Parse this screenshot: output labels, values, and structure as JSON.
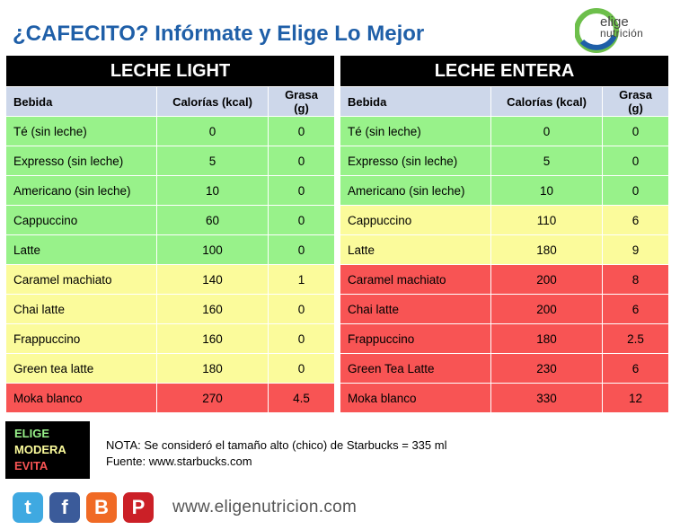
{
  "title": "¿CAFECITO? Infórmate y Elige Lo Mejor",
  "logo": {
    "line1": "elige",
    "line2": "nutrición",
    "colors": [
      "#6dbf4b",
      "#1f5fa8"
    ]
  },
  "columns": {
    "name": "Bebida",
    "cal": "Calorías (kcal)",
    "fat": "Grasa (g)"
  },
  "tables": {
    "light": {
      "heading": "LECHE LIGHT",
      "rows": [
        {
          "name": "Té (sin leche)",
          "cal": "0",
          "fat": "0",
          "level": "g"
        },
        {
          "name": "Expresso (sin leche)",
          "cal": "5",
          "fat": "0",
          "level": "g"
        },
        {
          "name": "Americano (sin leche)",
          "cal": "10",
          "fat": "0",
          "level": "g"
        },
        {
          "name": "Cappuccino",
          "cal": "60",
          "fat": "0",
          "level": "g"
        },
        {
          "name": "Latte",
          "cal": "100",
          "fat": "0",
          "level": "g"
        },
        {
          "name": "Caramel machiato",
          "cal": "140",
          "fat": "1",
          "level": "y"
        },
        {
          "name": "Chai latte",
          "cal": "160",
          "fat": "0",
          "level": "y"
        },
        {
          "name": "Frappuccino",
          "cal": "160",
          "fat": "0",
          "level": "y"
        },
        {
          "name": "Green tea latte",
          "cal": "180",
          "fat": "0",
          "level": "y"
        },
        {
          "name": "Moka blanco",
          "cal": "270",
          "fat": "4.5",
          "level": "r"
        }
      ]
    },
    "whole": {
      "heading": "LECHE ENTERA",
      "rows": [
        {
          "name": "Té (sin leche)",
          "cal": "0",
          "fat": "0",
          "level": "g"
        },
        {
          "name": "Expresso (sin leche)",
          "cal": "5",
          "fat": "0",
          "level": "g"
        },
        {
          "name": "Americano (sin leche)",
          "cal": "10",
          "fat": "0",
          "level": "g"
        },
        {
          "name": "Cappuccino",
          "cal": "110",
          "fat": "6",
          "level": "y"
        },
        {
          "name": "Latte",
          "cal": "180",
          "fat": "9",
          "level": "y"
        },
        {
          "name": "Caramel machiato",
          "cal": "200",
          "fat": "8",
          "level": "r"
        },
        {
          "name": "Chai latte",
          "cal": "200",
          "fat": "6",
          "level": "r"
        },
        {
          "name": "Frappuccino",
          "cal": "180",
          "fat": "2.5",
          "level": "r"
        },
        {
          "name": "Green Tea Latte",
          "cal": "230",
          "fat": "6",
          "level": "r"
        },
        {
          "name": "Moka blanco",
          "cal": "330",
          "fat": "12",
          "level": "r"
        }
      ]
    }
  },
  "legend": {
    "elige": "ELIGE",
    "modera": "MODERA",
    "evita": "EVITA",
    "colors": {
      "green": "#98f28a",
      "yellow": "#fbfb9b",
      "red": "#f85454"
    }
  },
  "note": {
    "line1": "NOTA: Se consideró el tamaño alto (chico) de Starbucks = 335 ml",
    "line2": "Fuente: www.starbucks.com"
  },
  "social": {
    "twitter": "twitter-icon",
    "facebook": "facebook-icon",
    "blogger": "blogger-icon",
    "pinterest": "pinterest-icon"
  },
  "website": "www.eligenutricion.com"
}
